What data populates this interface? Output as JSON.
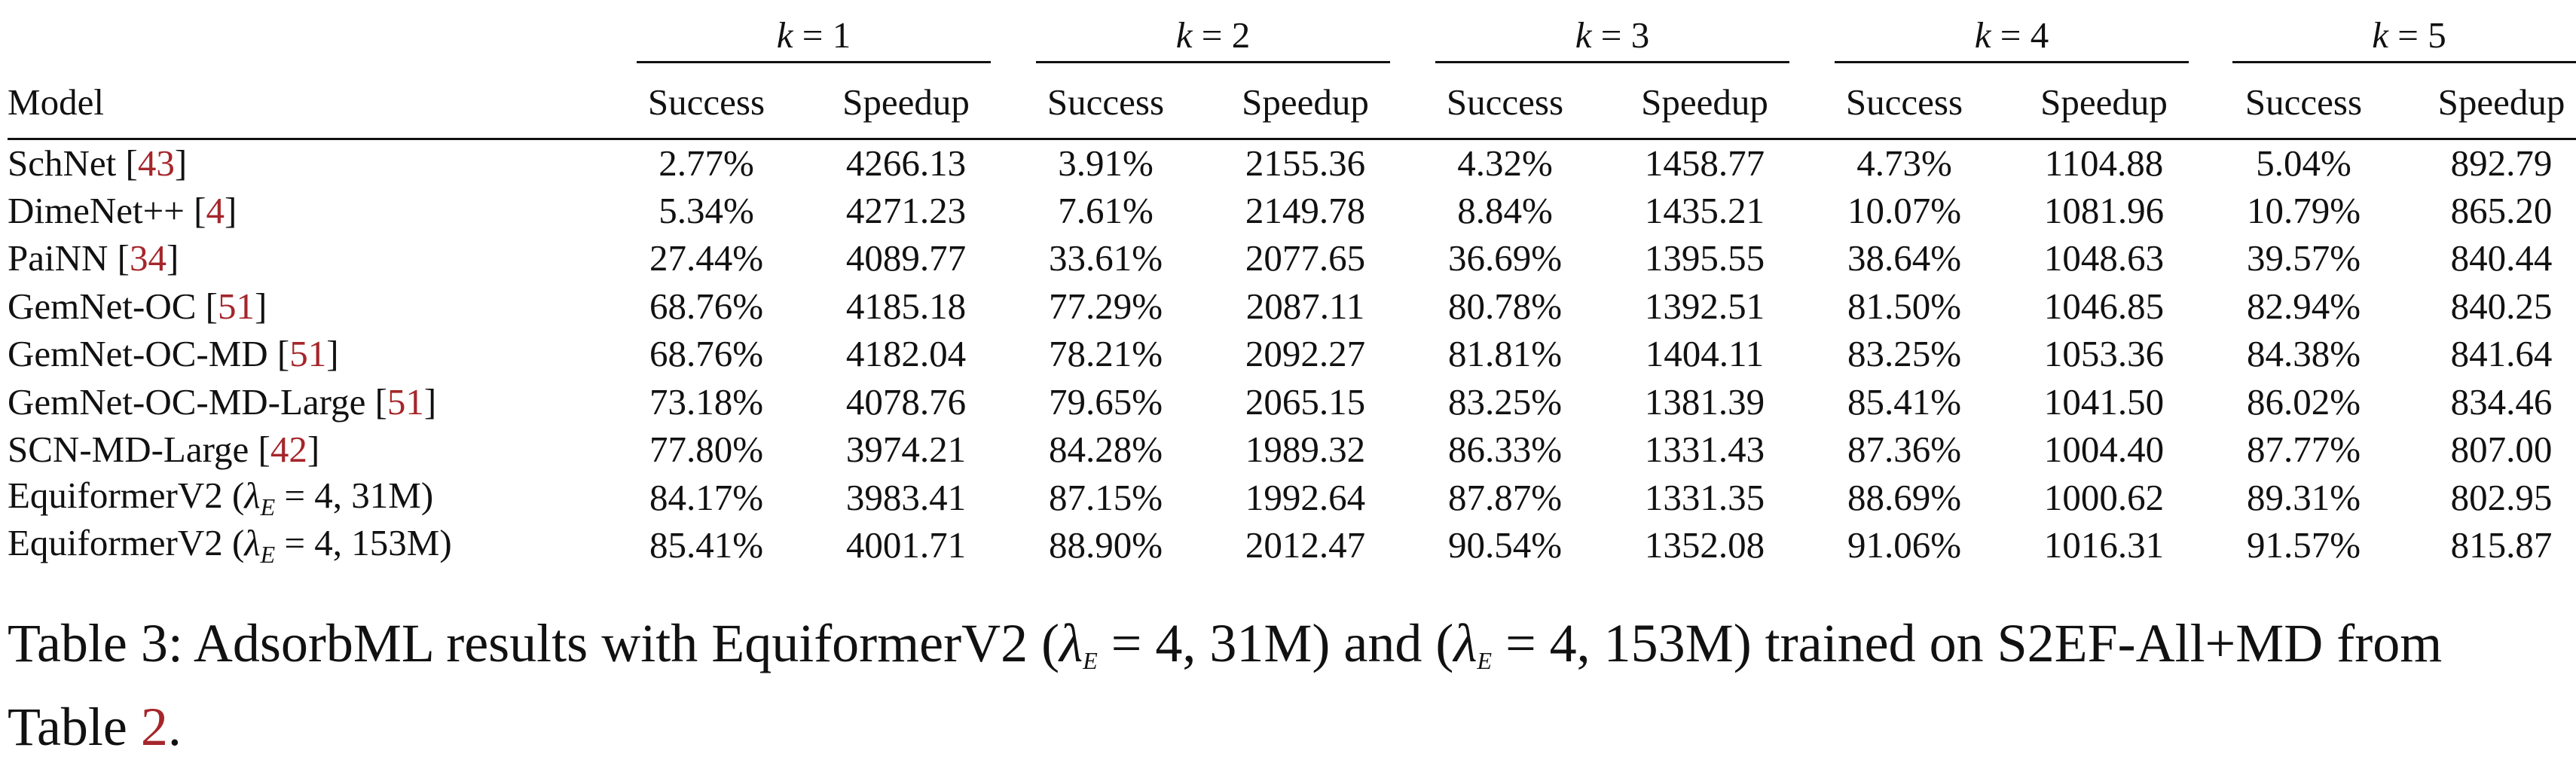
{
  "table": {
    "model_header": "Model",
    "k_labels": [
      "k",
      "k",
      "k",
      "k",
      "k"
    ],
    "k_values": [
      "1",
      "2",
      "3",
      "4",
      "5"
    ],
    "k_eq": "=",
    "col_success": "Success",
    "col_speedup": "Speedup",
    "rows": [
      {
        "name": "SchNet",
        "ref": "43",
        "cells": [
          "2.77%",
          "4266.13",
          "3.91%",
          "2155.36",
          "4.32%",
          "1458.77",
          "4.73%",
          "1104.88",
          "5.04%",
          "892.79"
        ]
      },
      {
        "name": "DimeNet++",
        "ref": "4",
        "cells": [
          "5.34%",
          "4271.23",
          "7.61%",
          "2149.78",
          "8.84%",
          "1435.21",
          "10.07%",
          "1081.96",
          "10.79%",
          "865.20"
        ]
      },
      {
        "name": "PaiNN",
        "ref": "34",
        "cells": [
          "27.44%",
          "4089.77",
          "33.61%",
          "2077.65",
          "36.69%",
          "1395.55",
          "38.64%",
          "1048.63",
          "39.57%",
          "840.44"
        ]
      },
      {
        "name": "GemNet-OC",
        "ref": "51",
        "cells": [
          "68.76%",
          "4185.18",
          "77.29%",
          "2087.11",
          "80.78%",
          "1392.51",
          "81.50%",
          "1046.85",
          "82.94%",
          "840.25"
        ]
      },
      {
        "name": "GemNet-OC-MD",
        "ref": "51",
        "cells": [
          "68.76%",
          "4182.04",
          "78.21%",
          "2092.27",
          "81.81%",
          "1404.11",
          "83.25%",
          "1053.36",
          "84.38%",
          "841.64"
        ]
      },
      {
        "name": "GemNet-OC-MD-Large",
        "ref": "51",
        "cells": [
          "73.18%",
          "4078.76",
          "79.65%",
          "2065.15",
          "83.25%",
          "1381.39",
          "85.41%",
          "1041.50",
          "86.02%",
          "834.46"
        ]
      },
      {
        "name": "SCN-MD-Large",
        "ref": "42",
        "cells": [
          "77.80%",
          "3974.21",
          "84.28%",
          "1989.32",
          "86.33%",
          "1331.43",
          "87.36%",
          "1004.40",
          "87.77%",
          "807.00"
        ]
      },
      {
        "name": "EquiformerV2 (",
        "lambda": "λ",
        "lambda_sub": "E",
        "lambda_eq": "= 4, 31M)",
        "cells": [
          "84.17%",
          "3983.41",
          "87.15%",
          "1992.64",
          "87.87%",
          "1331.35",
          "88.69%",
          "1000.62",
          "89.31%",
          "802.95"
        ]
      },
      {
        "name": "EquiformerV2 (",
        "lambda": "λ",
        "lambda_sub": "E",
        "lambda_eq": "= 4, 153M)",
        "cells": [
          "85.41%",
          "4001.71",
          "88.90%",
          "2012.47",
          "90.54%",
          "1352.08",
          "91.06%",
          "1016.31",
          "91.57%",
          "815.87"
        ]
      }
    ]
  },
  "caption": {
    "part1": "Table 3: AdsorbML results with EquiformerV2 (",
    "lambda": "λ",
    "sub": "E",
    "part2": "= 4, 31M) and (",
    "part3": "= 4, 153M) trained on S2EF-All+MD from Table ",
    "ref": "2",
    "end": "."
  }
}
